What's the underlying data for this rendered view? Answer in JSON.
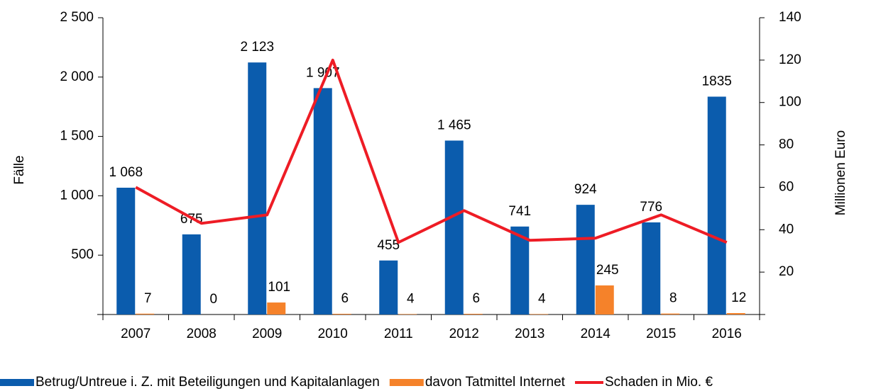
{
  "chart_data": {
    "type": "bar",
    "categories": [
      "2007",
      "2008",
      "2009",
      "2010",
      "2011",
      "2012",
      "2013",
      "2014",
      "2015",
      "2016"
    ],
    "series": [
      {
        "name": "Betrug/Untreue i. Z. mit Beteiligungen und Kapitalanlagen",
        "color": "#0b5cad",
        "type": "bar",
        "values": [
          1068,
          675,
          2123,
          1907,
          455,
          1465,
          741,
          924,
          776,
          1835
        ],
        "value_labels": [
          "1 068",
          "675",
          "2 123",
          "1 907",
          "455",
          "1 465",
          "741",
          "924",
          "776",
          "1835"
        ]
      },
      {
        "name": "davon Tatmittel Internet",
        "color": "#f5822a",
        "type": "bar",
        "values": [
          7,
          0,
          101,
          6,
          4,
          6,
          4,
          245,
          8,
          12
        ]
      },
      {
        "name": "Schaden in Mio. €",
        "color": "#ee1c25",
        "type": "line",
        "axis": "y2",
        "values": [
          60,
          43,
          47,
          120,
          34,
          49,
          35,
          36,
          47,
          34
        ]
      }
    ],
    "ylabel": "Fälle",
    "y2label": "Millionen Euro",
    "ylim": [
      0,
      2500
    ],
    "yticks": [
      500,
      {
        "value": 1000,
        "label": "1 000"
      },
      {
        "value": 1500,
        "label": "1 500"
      },
      {
        "value": 2000,
        "label": "2 000"
      },
      {
        "value": 2500,
        "label": "2 500"
      }
    ],
    "y2lim": [
      0,
      140
    ],
    "y2ticks": [
      20,
      40,
      60,
      80,
      100,
      120,
      140
    ],
    "legend": "bottom"
  }
}
